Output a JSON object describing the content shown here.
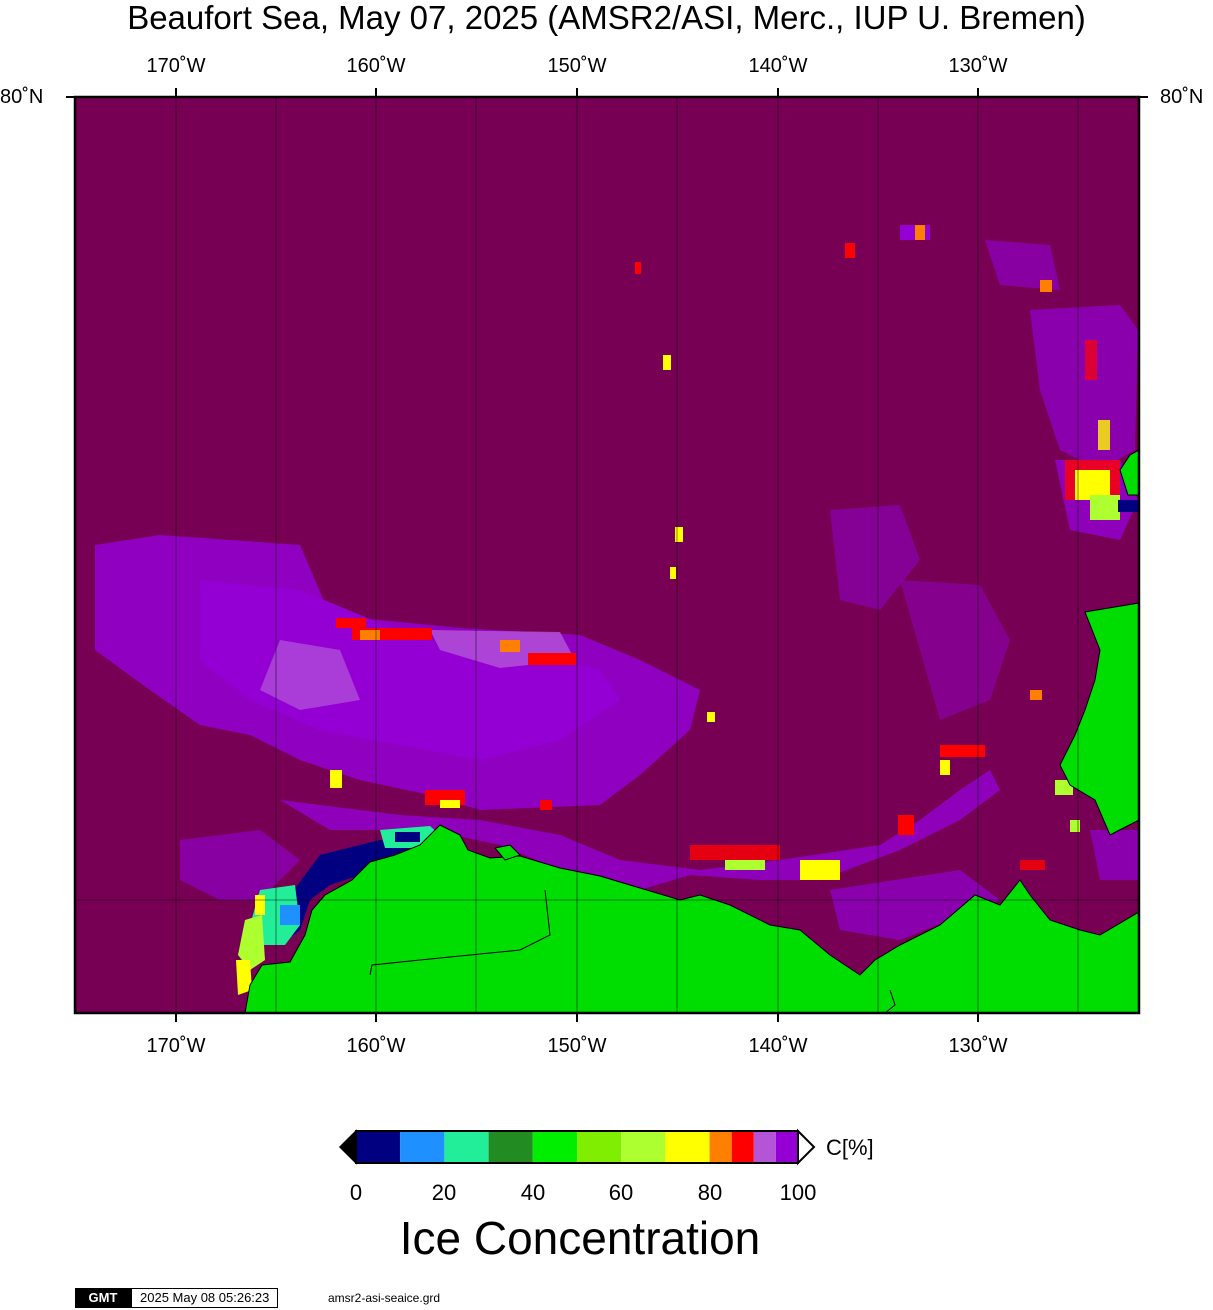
{
  "title": "Beaufort Sea, May 07, 2025 (AMSR2/ASI, Merc., IUP U. Bremen)",
  "map": {
    "lon_labels_top": [
      "170˚W",
      "160˚W",
      "150˚W",
      "140˚W",
      "130˚W"
    ],
    "lon_labels_bottom": [
      "170˚W",
      "160˚W",
      "150˚W",
      "140˚W",
      "130˚W"
    ],
    "lat_label_left": "80˚N",
    "lat_label_right": "80˚N",
    "colors": {
      "ocean_ice": "#770055",
      "land": "#00dd00",
      "coast": "#000000"
    }
  },
  "colorbar": {
    "unit": "C[%]",
    "ticks": [
      "0",
      "20",
      "40",
      "60",
      "80",
      "100"
    ],
    "title": "Ice Concentration",
    "colors": [
      "#000080",
      "#1e90ff",
      "#22ee99",
      "#228b22",
      "#00ee00",
      "#7fee00",
      "#adff2f",
      "#ffff00",
      "#ff8000",
      "#ff0000",
      "#b455d8",
      "#9400d3"
    ]
  },
  "footer": {
    "logo": "GMT",
    "timestamp": "2025 May 08 05:26:23",
    "filename": "amsr2-asi-seaice.grd"
  }
}
